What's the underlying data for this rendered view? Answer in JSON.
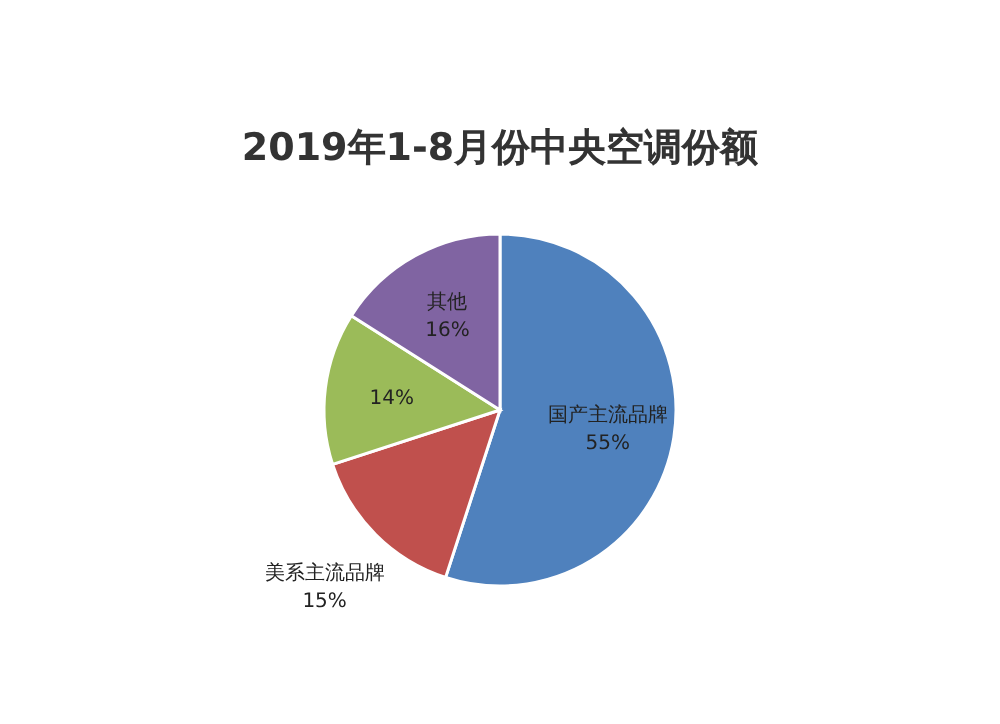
{
  "chart_data": {
    "type": "pie",
    "title": "2019年1-8月份中央空调份额",
    "categories": [
      "国产主流品牌",
      "美系主流品牌",
      null,
      "其他"
    ],
    "values": [
      55,
      15,
      14,
      16
    ],
    "colors": [
      "#4f81bd",
      "#c0504d",
      "#9bbb59",
      "#8064a2"
    ],
    "value_labels": [
      "55%",
      "15%",
      "14%",
      "16%"
    ]
  }
}
